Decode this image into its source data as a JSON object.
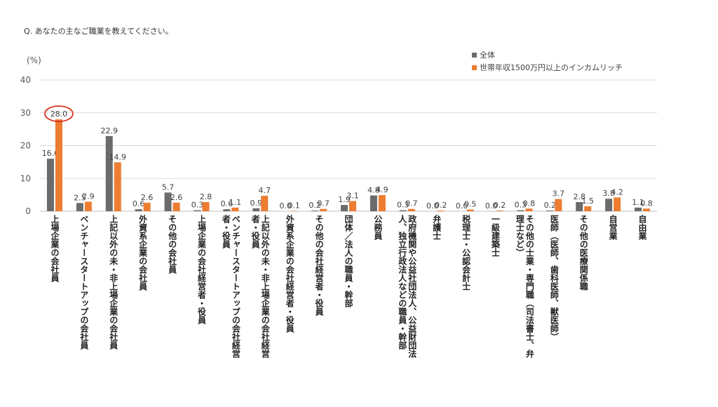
{
  "question": "Q. あなたの主なご職業を教えてください。",
  "chart_data": {
    "type": "bar",
    "ylabel": "(%)",
    "ylim": [
      0,
      40
    ],
    "yticks": [
      0,
      10,
      20,
      30,
      40
    ],
    "grid": true,
    "legend_position": "top-right",
    "colors": {
      "series1": "#6b6b6b",
      "series2": "#ed7d31",
      "highlight": "#d9301e"
    },
    "highlight": {
      "series": 1,
      "category_index": 0
    },
    "categories": [
      "上場企業の会社員",
      "ベンチャースタートアップの会社員",
      "上記以外の未・非上場企業の会社員",
      "外資系企業の会社員",
      "その他の会社員",
      "上場企業の会社経営者・役員",
      "ベンチャースタートアップの会社経営者・役員",
      "上記以外の未・非上場企業の会社経営者・役員",
      "外資系企業の会社経営者・役員",
      "その他の会社経営者・役員",
      "団体／法人の職員・幹部",
      "公務員",
      "政府機関や公益社団法人、公益財団法人、独立行政法人などの職員・幹部",
      "弁護士",
      "税理士・公認会計士",
      "一級建築士",
      "その他の士業・専門職（司法書士、弁理士など）",
      "医師（医師、歯科医師、獣医師）",
      "その他の医療関係職",
      "自営業",
      "自由業"
    ],
    "category_lines": [
      [
        "上場企業の会社員"
      ],
      [
        "ベンチャースタートアップの会社員"
      ],
      [
        "上記以外の未・非上場企業の会社員"
      ],
      [
        "外資系企業の会社員"
      ],
      [
        "その他の会社員"
      ],
      [
        "上場企業の会社経営者・役員"
      ],
      [
        "ベンチャースタートアップの会社経営",
        "者・役員"
      ],
      [
        "上記以外の未・非上場企業の会社経営",
        "者・役員"
      ],
      [
        "外資系企業の会社経営者・役員"
      ],
      [
        "その他の会社経営者・役員"
      ],
      [
        "団体／法人の職員・幹部"
      ],
      [
        "公務員"
      ],
      [
        "政府機関や公益社団法人、公益財団法",
        "人、独立行政法人などの職員・幹部"
      ],
      [
        "弁護士"
      ],
      [
        "税理士・公認会計士"
      ],
      [
        "一級建築士"
      ],
      [
        "その他の士業・専門職（司法書士、弁",
        "理士など）"
      ],
      [
        "医師（医師、歯科医師、獣医師）"
      ],
      [
        "その他の医療関係職"
      ],
      [
        "自営業"
      ],
      [
        "自由業"
      ]
    ],
    "series": [
      {
        "name": "全体",
        "values": [
          16.0,
          2.5,
          22.9,
          0.6,
          5.7,
          0.3,
          0.6,
          0.9,
          0.0,
          0.2,
          1.9,
          4.8,
          0.3,
          0.0,
          0.0,
          0.0,
          0.3,
          0.2,
          2.8,
          3.8,
          1.1
        ]
      },
      {
        "name": "世帯年収1500万円以上のインカムリッチ",
        "values": [
          28.0,
          2.9,
          14.9,
          2.6,
          2.6,
          2.8,
          1.1,
          4.7,
          0.1,
          0.7,
          3.1,
          4.9,
          0.7,
          0.2,
          0.5,
          0.2,
          0.8,
          3.7,
          1.5,
          4.2,
          0.8
        ]
      }
    ]
  }
}
